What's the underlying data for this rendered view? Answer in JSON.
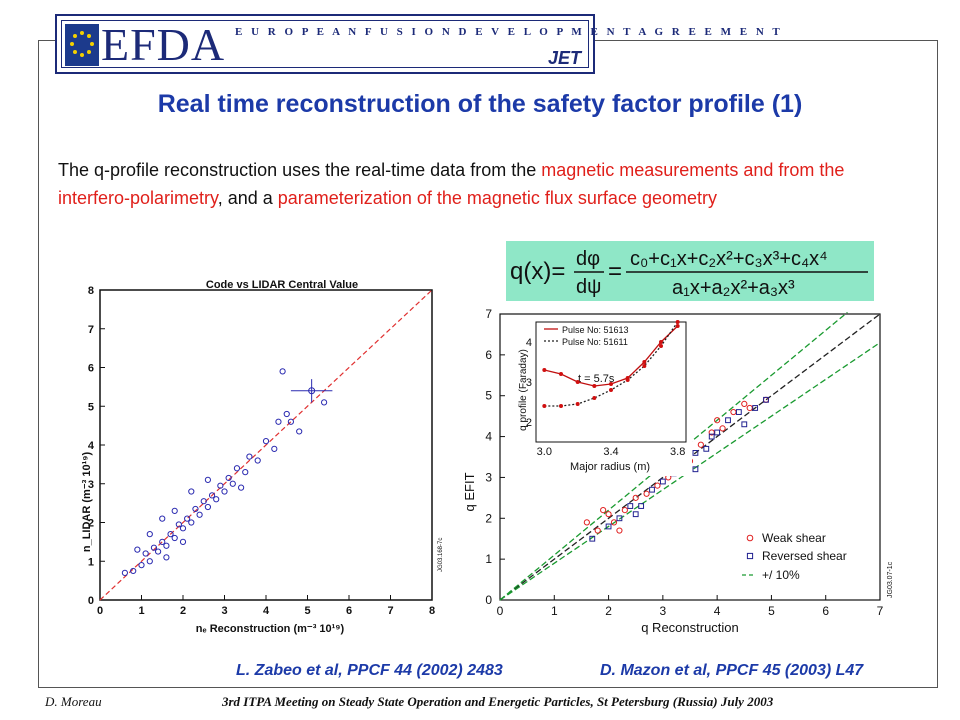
{
  "banner": {
    "logo_text": "EFDA",
    "subtitle": "E U R O P E A N   F U S I O N   D E V E L O P M E N T   A G R E E M E N T",
    "jet": "JET"
  },
  "title": "Real time reconstruction of the safety factor profile (1)",
  "body": {
    "p1": "The q-profile reconstruction uses the real-time data from the ",
    "h1": "magnetic measurements and from the interfero-polarimetry",
    "p2": ", and a ",
    "h2": "parameterization of the magnetic flux surface geometry"
  },
  "formula": {
    "lhs": "q(x)=",
    "dphi": "dφ",
    "dpsi": "dψ",
    "numerator": "c₀+c₁x+c₂x²+c₃x³+c₄x⁴",
    "denominator": "a₁x+a₂x²+a₃x³"
  },
  "chart_data": [
    {
      "type": "scatter",
      "title": "Code vs LIDAR Central Value",
      "xlabel": "nₑ Reconstruction (m⁻³ 10¹⁹)",
      "ylabel": "n_LIDAR (m⁻³ 10¹⁹)",
      "xlim": [
        0,
        8
      ],
      "ylim": [
        0,
        8
      ],
      "ticks": [
        "0",
        "1",
        "2",
        "3",
        "4",
        "5",
        "6",
        "7",
        "8"
      ],
      "watermark": "JG03.168-7c",
      "colors": {
        "points": "#2a2ab0",
        "line": "#e03030"
      },
      "reference_line": "y = x",
      "error_bar_point": {
        "x": 5.1,
        "y": 5.4
      },
      "series": [
        {
          "values": [
            [
              0.6,
              0.7
            ],
            [
              0.8,
              0.75
            ],
            [
              1.0,
              0.9
            ],
            [
              1.1,
              1.2
            ],
            [
              1.2,
              1.0
            ],
            [
              1.3,
              1.35
            ],
            [
              1.4,
              1.25
            ],
            [
              1.5,
              1.5
            ],
            [
              1.6,
              1.4
            ],
            [
              1.7,
              1.7
            ],
            [
              1.8,
              1.6
            ],
            [
              1.9,
              1.95
            ],
            [
              2.0,
              1.85
            ],
            [
              2.1,
              2.1
            ],
            [
              2.2,
              2.0
            ],
            [
              2.3,
              2.35
            ],
            [
              2.4,
              2.2
            ],
            [
              2.5,
              2.55
            ],
            [
              2.6,
              2.4
            ],
            [
              2.7,
              2.7
            ],
            [
              2.8,
              2.6
            ],
            [
              2.9,
              2.95
            ],
            [
              3.0,
              2.8
            ],
            [
              3.1,
              3.15
            ],
            [
              3.2,
              3.0
            ],
            [
              3.3,
              3.4
            ],
            [
              3.5,
              3.3
            ],
            [
              3.6,
              3.7
            ],
            [
              3.8,
              3.6
            ],
            [
              4.0,
              4.1
            ],
            [
              4.2,
              3.9
            ],
            [
              4.3,
              4.6
            ],
            [
              4.4,
              5.9
            ],
            [
              4.5,
              4.8
            ],
            [
              4.6,
              4.6
            ],
            [
              4.8,
              4.35
            ],
            [
              5.4,
              5.1
            ],
            [
              1.5,
              2.1
            ],
            [
              1.8,
              2.3
            ],
            [
              2.2,
              2.8
            ],
            [
              2.6,
              3.1
            ],
            [
              1.2,
              1.7
            ],
            [
              0.9,
              1.3
            ],
            [
              3.4,
              2.9
            ],
            [
              2.0,
              1.5
            ],
            [
              1.6,
              1.1
            ]
          ]
        }
      ]
    },
    {
      "type": "scatter",
      "xlabel": "q Reconstruction",
      "ylabel": "q EFIT",
      "xlim": [
        0,
        7
      ],
      "ylim": [
        0,
        7
      ],
      "ticks": [
        "0",
        "1",
        "2",
        "3",
        "4",
        "5",
        "6",
        "7"
      ],
      "watermark": "JG03.07-1c",
      "colors": {
        "weak": "#e02020",
        "reversed": "#202090",
        "bounds": "#1a9a30",
        "unity": "#222222"
      },
      "legend": [
        "Weak shear",
        "Reversed shear",
        "+/ 10%"
      ],
      "legend_position": "bottom-right",
      "series": [
        {
          "name": "Weak shear",
          "values": [
            [
              1.6,
              1.9
            ],
            [
              1.8,
              1.7
            ],
            [
              2.0,
              2.1
            ],
            [
              2.1,
              1.9
            ],
            [
              2.3,
              2.2
            ],
            [
              2.5,
              2.5
            ],
            [
              2.7,
              2.6
            ],
            [
              2.9,
              2.8
            ],
            [
              3.1,
              3.0
            ],
            [
              3.3,
              3.3
            ],
            [
              3.5,
              3.4
            ],
            [
              3.7,
              3.8
            ],
            [
              3.9,
              4.1
            ],
            [
              4.1,
              4.2
            ],
            [
              4.3,
              4.6
            ],
            [
              4.5,
              4.8
            ],
            [
              4.6,
              4.7
            ],
            [
              4.9,
              4.9
            ],
            [
              3.0,
              3.5
            ],
            [
              3.4,
              3.9
            ],
            [
              2.2,
              1.7
            ],
            [
              1.9,
              2.2
            ],
            [
              4.0,
              4.4
            ]
          ]
        },
        {
          "name": "Reversed shear",
          "values": [
            [
              1.7,
              1.5
            ],
            [
              2.0,
              1.8
            ],
            [
              2.2,
              2.0
            ],
            [
              2.4,
              2.3
            ],
            [
              2.6,
              2.3
            ],
            [
              2.8,
              2.7
            ],
            [
              3.0,
              2.9
            ],
            [
              3.2,
              3.1
            ],
            [
              3.4,
              3.2
            ],
            [
              3.6,
              3.6
            ],
            [
              3.8,
              3.7
            ],
            [
              4.0,
              4.1
            ],
            [
              4.2,
              4.4
            ],
            [
              4.4,
              4.6
            ],
            [
              4.5,
              4.3
            ],
            [
              4.7,
              4.7
            ],
            [
              4.9,
              4.9
            ],
            [
              3.3,
              3.8
            ],
            [
              3.6,
              3.2
            ],
            [
              2.9,
              3.3
            ],
            [
              2.5,
              2.1
            ],
            [
              3.9,
              4.0
            ]
          ]
        }
      ],
      "bounds": {
        "unity": [
          [
            0,
            0
          ],
          [
            7,
            7
          ]
        ],
        "plus10": [
          [
            0,
            0
          ],
          [
            6.4,
            7.04
          ]
        ],
        "minus10": [
          [
            0,
            0
          ],
          [
            7,
            6.3
          ]
        ]
      },
      "inset": {
        "xlabel": "Major radius (m)",
        "ylabel": "q profile (Faraday)",
        "xlim": [
          2.95,
          3.85
        ],
        "ylim": [
          1.5,
          4.5
        ],
        "xticks": [
          "3.0",
          "3.4",
          "3.8"
        ],
        "yticks": [
          "2",
          "3",
          "4"
        ],
        "annotation": "t = 5.7s",
        "legend": [
          "Pulse No: 51613",
          "Pulse No: 51611"
        ],
        "series": [
          {
            "name": "Pulse No: 51613",
            "values": [
              [
                3.0,
                3.3
              ],
              [
                3.1,
                3.2
              ],
              [
                3.2,
                3.0
              ],
              [
                3.3,
                2.9
              ],
              [
                3.4,
                2.95
              ],
              [
                3.5,
                3.1
              ],
              [
                3.6,
                3.5
              ],
              [
                3.7,
                4.0
              ],
              [
                3.8,
                4.4
              ]
            ]
          },
          {
            "name": "Pulse No: 51611",
            "values": [
              [
                3.0,
                2.4
              ],
              [
                3.1,
                2.4
              ],
              [
                3.2,
                2.45
              ],
              [
                3.3,
                2.6
              ],
              [
                3.4,
                2.8
              ],
              [
                3.5,
                3.05
              ],
              [
                3.6,
                3.4
              ],
              [
                3.7,
                3.9
              ],
              [
                3.8,
                4.5
              ]
            ]
          }
        ]
      }
    }
  ],
  "references": {
    "ref1": "L. Zabeo et al, PPCF 44 (2002) 2483",
    "ref2": "D. Mazon et al, PPCF 45 (2003) L47"
  },
  "footer": {
    "author": "D. Moreau",
    "meeting": "3rd ITPA Meeting on Steady State Operation and Energetic Particles, St Petersburg (Russia) July 2003"
  }
}
